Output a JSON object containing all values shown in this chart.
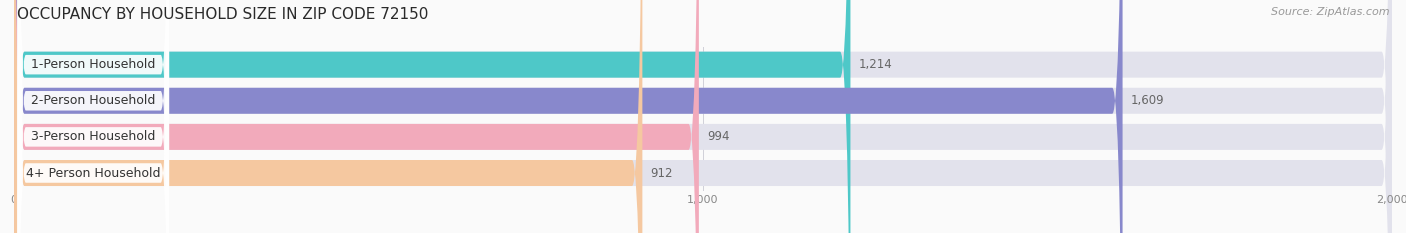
{
  "title": "OCCUPANCY BY HOUSEHOLD SIZE IN ZIP CODE 72150",
  "source": "Source: ZipAtlas.com",
  "categories": [
    "1-Person Household",
    "2-Person Household",
    "3-Person Household",
    "4+ Person Household"
  ],
  "values": [
    1214,
    1609,
    994,
    912
  ],
  "bar_colors": [
    "#4EC8C8",
    "#8888CC",
    "#F2AABB",
    "#F5C8A0"
  ],
  "bar_bg_color": "#E2E2EC",
  "xlim": [
    0,
    2000
  ],
  "xticks": [
    0,
    1000,
    2000
  ],
  "xtick_labels": [
    "0",
    "1,000",
    "2,000"
  ],
  "value_labels": [
    "1,214",
    "1,609",
    "994",
    "912"
  ],
  "title_fontsize": 11,
  "source_fontsize": 8,
  "label_fontsize": 9,
  "value_fontsize": 8.5,
  "tick_fontsize": 8,
  "figsize": [
    14.06,
    2.33
  ],
  "dpi": 100
}
